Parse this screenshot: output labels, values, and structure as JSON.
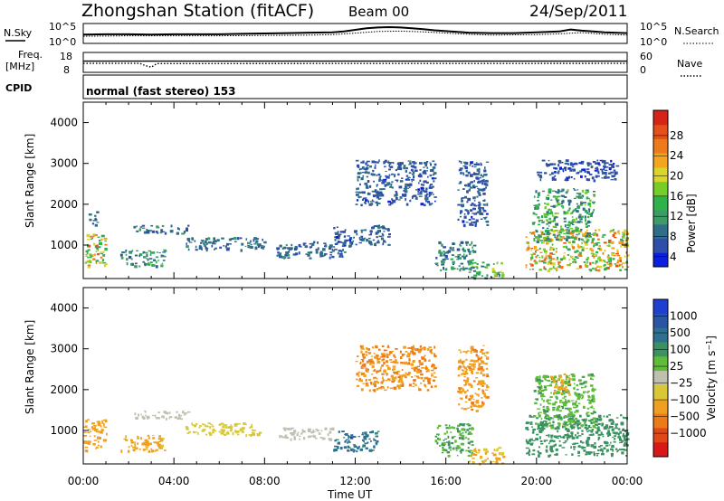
{
  "header": {
    "station": "Zhongshan Station (fitACF)",
    "beam": "Beam 00",
    "date": "24/Sep/2011"
  },
  "labels": {
    "nsky": "N.Sky",
    "nsearch": "N.Search",
    "freq_line1": "Freq.",
    "freq_line2": "[MHz]",
    "nave": "Nave",
    "cpid": "CPID",
    "mode": "normal (fast stereo) 153"
  },
  "ticks": {
    "noise_top_left": "10^5",
    "noise_bottom_left": "10^0",
    "noise_top_right": "10^5",
    "noise_bottom_right": "10^0",
    "freq_top": "18",
    "freq_bottom": "8",
    "nave_top": "60",
    "nave_bottom": "0"
  },
  "colors": {
    "power_scale": [
      "#0a20e0",
      "#2f4ea8",
      "#2f6e86",
      "#3e9a66",
      "#2db34a",
      "#76cc29",
      "#d9d52a",
      "#f3a51e",
      "#ee7a1a",
      "#e4501c",
      "#d62418"
    ],
    "velocity_scale": [
      "#1f3fd0",
      "#2b55a4",
      "#2f7090",
      "#3b9160",
      "#5fbb3a",
      "#c0c0b0",
      "#d8c838",
      "#f0a020",
      "#ec7a18",
      "#e04818",
      "#d81818"
    ],
    "tracks": [
      "#000000",
      "#3a3a3a"
    ]
  },
  "chart_data": [
    {
      "type": "line",
      "name": "noise-panel",
      "ylabel": "N.Sky",
      "y2label": "N.Search",
      "series": [
        {
          "name": "N.Sky",
          "x": [
            0,
            1,
            2,
            3,
            4,
            5,
            6,
            7,
            8,
            9,
            10,
            11,
            11.5,
            12,
            12.5,
            13,
            13.5,
            14,
            14.5,
            15,
            15.5,
            16,
            16.5,
            17,
            18,
            19,
            20,
            21,
            21.5,
            22,
            22.5,
            23,
            24
          ],
          "values": [
            2.2,
            2.3,
            2.3,
            2.2,
            2.3,
            2.3,
            2.3,
            2.4,
            2.5,
            2.6,
            2.7,
            2.8,
            3.0,
            3.4,
            3.8,
            4.0,
            4.1,
            4.0,
            3.8,
            3.6,
            3.3,
            3.1,
            2.9,
            2.7,
            2.6,
            2.6,
            2.8,
            3.0,
            3.5,
            3.2,
            3.0,
            2.8,
            2.6
          ]
        },
        {
          "name": "N.Search",
          "x": [
            0,
            2,
            4,
            6,
            8,
            10,
            11,
            12,
            13,
            14,
            15,
            16,
            17,
            18,
            20,
            21,
            22,
            23,
            24
          ],
          "values": [
            1.8,
            1.9,
            1.9,
            1.9,
            2.0,
            2.1,
            2.2,
            2.6,
            3.0,
            3.1,
            2.9,
            2.6,
            2.3,
            2.1,
            2.2,
            2.4,
            2.7,
            2.3,
            2.1
          ]
        }
      ]
    },
    {
      "type": "line",
      "name": "frequency-nave-panel",
      "series": [
        {
          "name": "Freq. [MHz]",
          "x": [
            0,
            2.5,
            2.75,
            3.0,
            3.25,
            24
          ],
          "values": [
            12.5,
            12.5,
            11.3,
            10.6,
            12.4,
            12.5
          ]
        },
        {
          "name": "Nave",
          "x": [
            0,
            24
          ],
          "values": [
            34,
            34
          ]
        }
      ]
    },
    {
      "type": "heatmap",
      "name": "power",
      "xlabel": "Time UT",
      "ylabel": "Slant Range [km]",
      "colorbar_label": "Power [dB]",
      "colorbar_ticks": [
        4,
        8,
        12,
        16,
        20,
        24,
        28
      ],
      "x_ticks": [
        "00:00",
        "04:00",
        "08:00",
        "12:00",
        "16:00",
        "20:00",
        "00:00"
      ],
      "y_ticks": [
        1000,
        2000,
        3000,
        4000
      ],
      "xlim": [
        0,
        24
      ],
      "ylim": [
        180,
        4500
      ],
      "echo_regions": [
        {
          "t0": 0.0,
          "t1": 1.0,
          "r0": 500,
          "r1": 1300,
          "value": 20
        },
        {
          "t0": 0.2,
          "t1": 0.6,
          "r0": 1500,
          "r1": 1900,
          "value": 8
        },
        {
          "t0": 1.6,
          "t1": 3.6,
          "r0": 500,
          "r1": 900,
          "value": 10
        },
        {
          "t0": 2.2,
          "t1": 4.6,
          "r0": 1300,
          "r1": 1500,
          "value": 8
        },
        {
          "t0": 4.5,
          "t1": 8.0,
          "r0": 900,
          "r1": 1200,
          "value": 7
        },
        {
          "t0": 8.5,
          "t1": 11.5,
          "r0": 700,
          "r1": 1100,
          "value": 7
        },
        {
          "t0": 11.0,
          "t1": 13.5,
          "r0": 1000,
          "r1": 1500,
          "value": 6
        },
        {
          "t0": 12.0,
          "t1": 15.5,
          "r0": 2000,
          "r1": 3100,
          "value": 6
        },
        {
          "t0": 15.5,
          "t1": 17.2,
          "r0": 400,
          "r1": 1100,
          "value": 10
        },
        {
          "t0": 16.5,
          "t1": 17.8,
          "r0": 1500,
          "r1": 3100,
          "value": 6
        },
        {
          "t0": 17.0,
          "t1": 18.5,
          "r0": 200,
          "r1": 600,
          "value": 14
        },
        {
          "t0": 19.5,
          "t1": 24.0,
          "r0": 400,
          "r1": 1400,
          "value": 20
        },
        {
          "t0": 19.8,
          "t1": 22.5,
          "r0": 1100,
          "r1": 2400,
          "value": 12
        },
        {
          "t0": 20.0,
          "t1": 23.5,
          "r0": 2600,
          "r1": 3100,
          "value": 5
        }
      ]
    },
    {
      "type": "heatmap",
      "name": "velocity",
      "xlabel": "Time UT",
      "ylabel": "Slant Range [km]",
      "colorbar_label": "Velocity [m s^-1]",
      "colorbar_ticks": [
        1000,
        500,
        100,
        25,
        -25,
        -100,
        -500,
        -1000
      ],
      "x_ticks": [
        "00:00",
        "04:00",
        "08:00",
        "12:00",
        "16:00",
        "20:00",
        "00:00"
      ],
      "y_ticks": [
        1000,
        2000,
        3000,
        4000
      ],
      "xlim": [
        0,
        24
      ],
      "ylim": [
        180,
        4500
      ],
      "echo_regions": [
        {
          "t0": 0.0,
          "t1": 1.0,
          "r0": 500,
          "r1": 1300,
          "value": -300
        },
        {
          "t0": 1.6,
          "t1": 3.6,
          "r0": 500,
          "r1": 900,
          "value": -150
        },
        {
          "t0": 2.2,
          "t1": 4.6,
          "r0": 1300,
          "r1": 1500,
          "value": 0
        },
        {
          "t0": 4.5,
          "t1": 8.0,
          "r0": 900,
          "r1": 1200,
          "value": -50
        },
        {
          "t0": 8.5,
          "t1": 11.0,
          "r0": 800,
          "r1": 1100,
          "value": 10
        },
        {
          "t0": 11.0,
          "t1": 13.0,
          "r0": 500,
          "r1": 1000,
          "value": 700
        },
        {
          "t0": 12.0,
          "t1": 15.5,
          "r0": 2000,
          "r1": 3100,
          "value": -500
        },
        {
          "t0": 15.5,
          "t1": 17.2,
          "r0": 400,
          "r1": 1200,
          "value": 100
        },
        {
          "t0": 16.5,
          "t1": 17.8,
          "r0": 1500,
          "r1": 3100,
          "value": -400
        },
        {
          "t0": 17.0,
          "t1": 18.5,
          "r0": 200,
          "r1": 600,
          "value": -100
        },
        {
          "t0": 19.5,
          "t1": 24.0,
          "r0": 400,
          "r1": 1400,
          "value": 200
        },
        {
          "t0": 19.8,
          "t1": 22.5,
          "r0": 1100,
          "r1": 2400,
          "value": 80
        },
        {
          "t0": 20.5,
          "t1": 21.5,
          "r0": 1900,
          "r1": 2400,
          "value": -150
        }
      ]
    }
  ]
}
